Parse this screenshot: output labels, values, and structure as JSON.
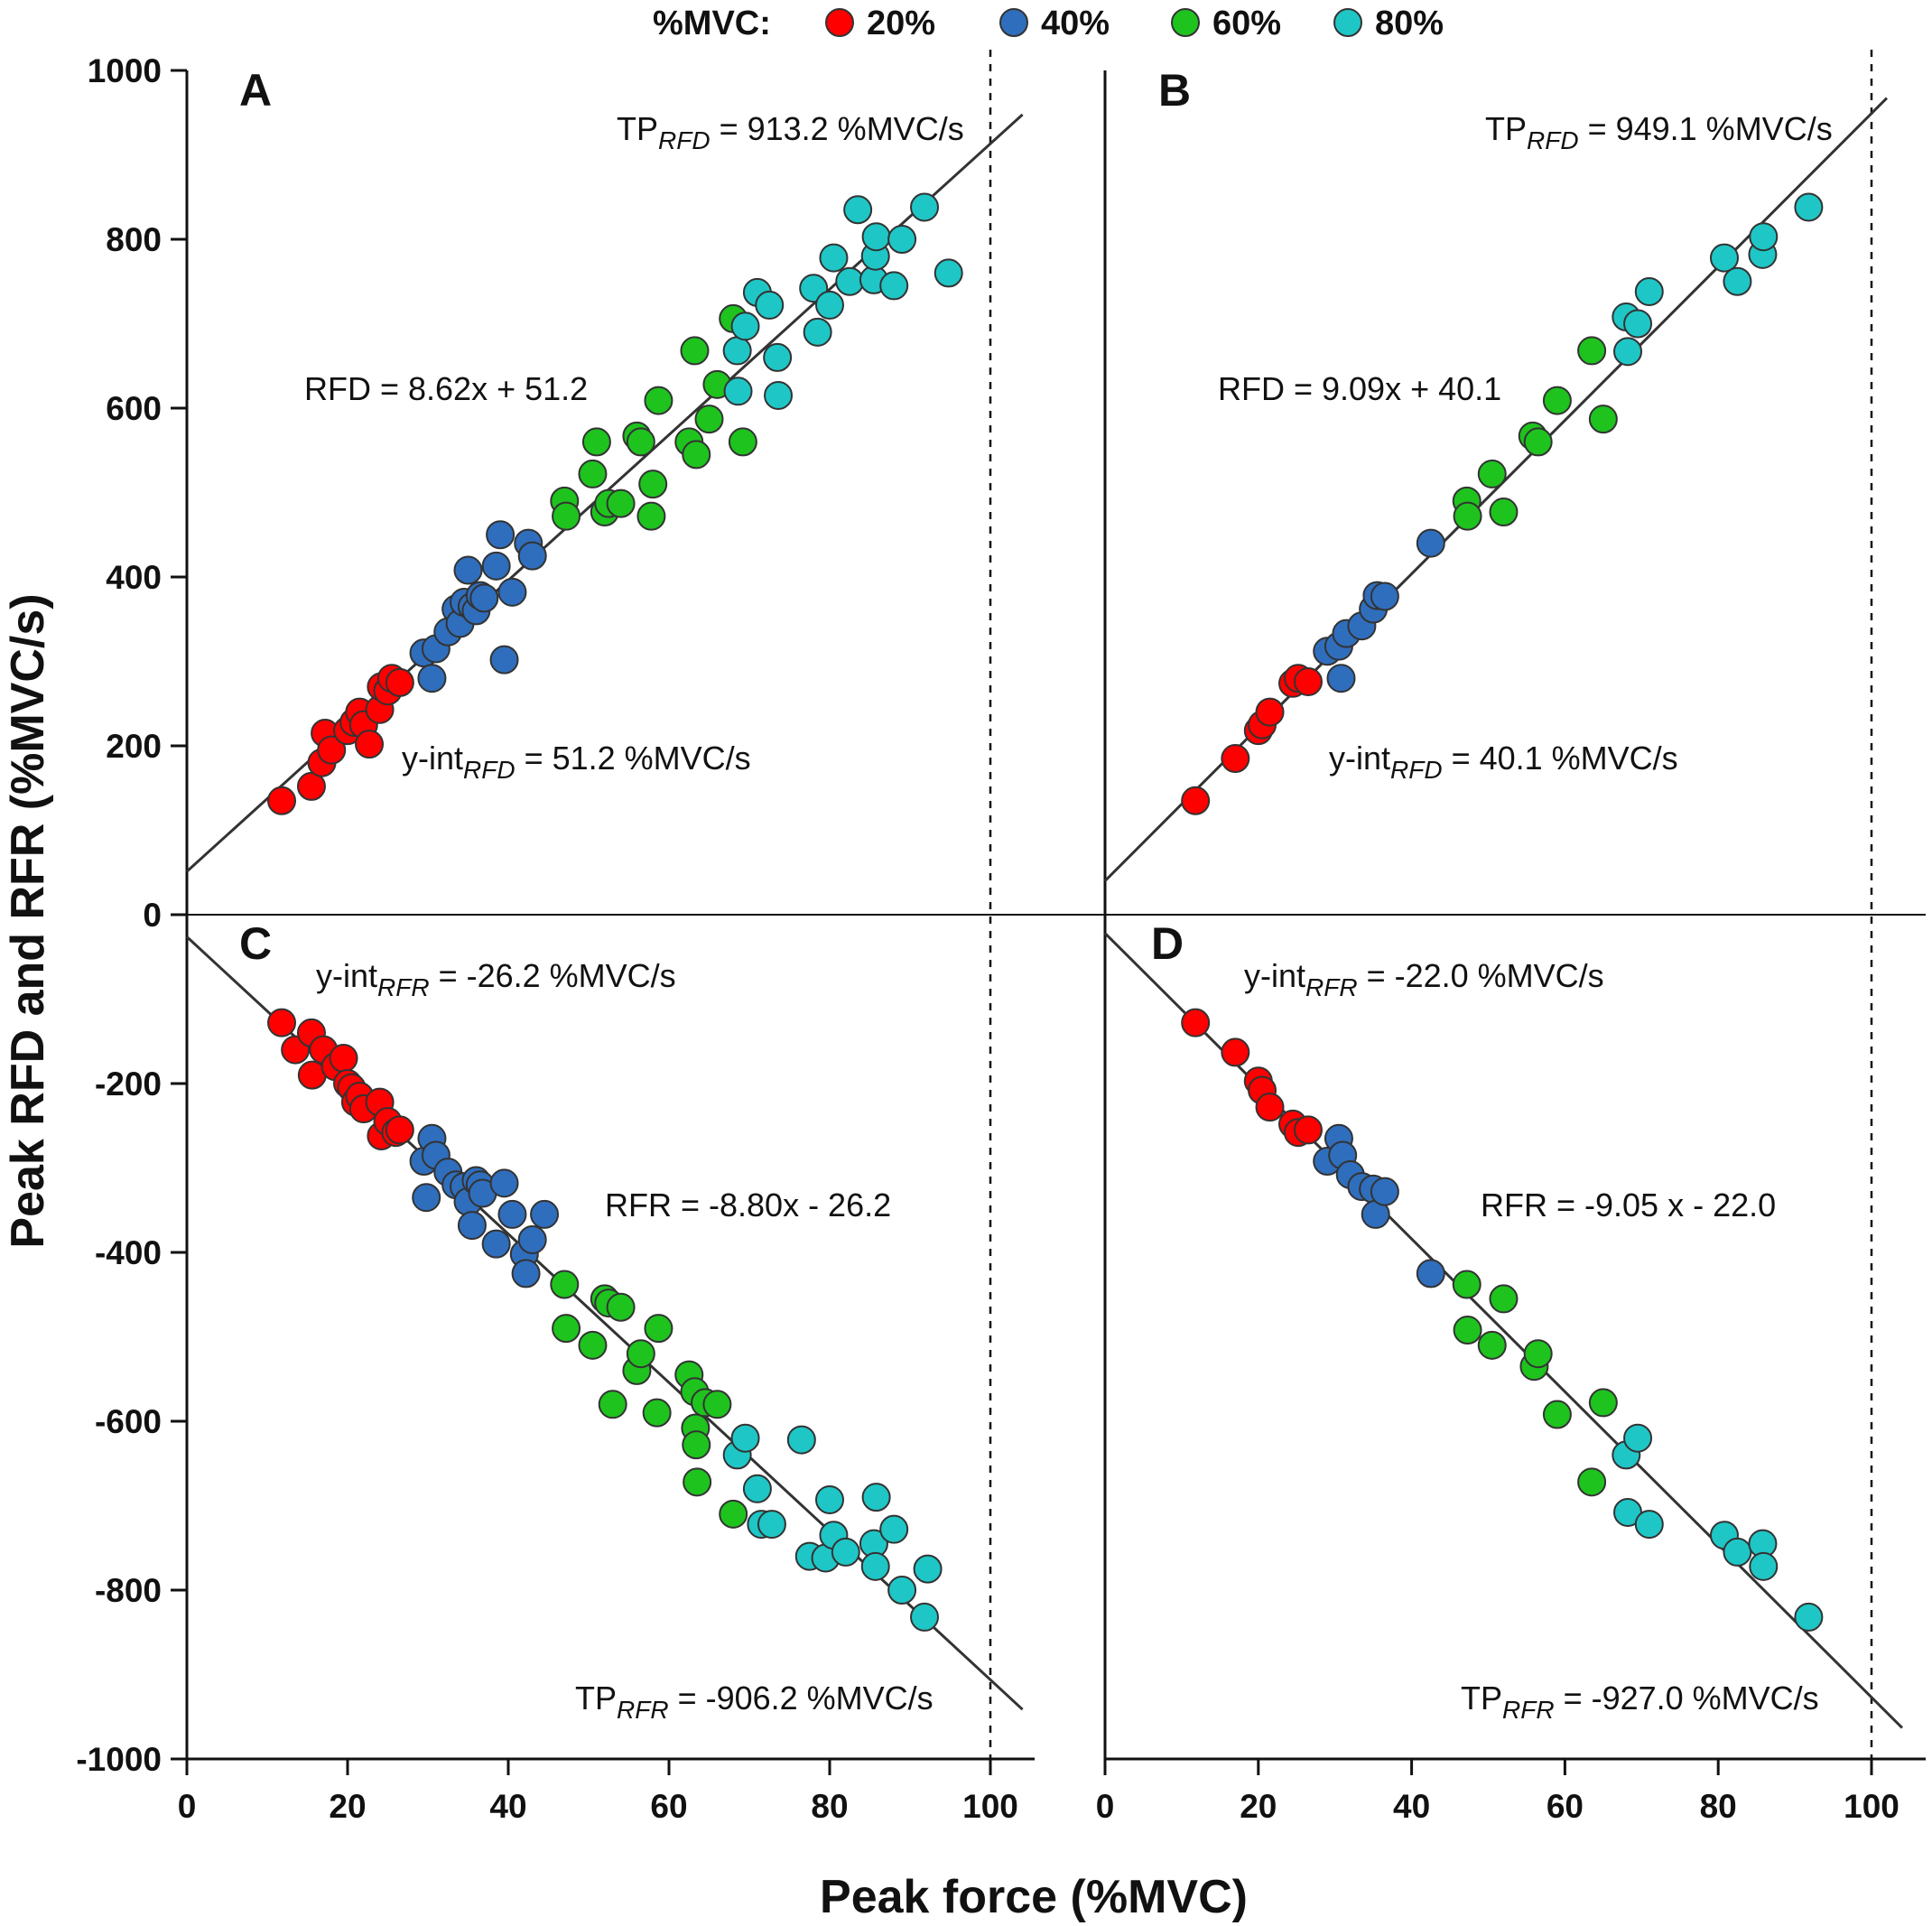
{
  "legend": {
    "title": "%MVC:",
    "items": [
      {
        "label": "20%",
        "color": "#ff0000"
      },
      {
        "label": "40%",
        "color": "#2f6ebd"
      },
      {
        "label": "60%",
        "color": "#1ec31e"
      },
      {
        "label": "80%",
        "color": "#1fc6c6"
      }
    ]
  },
  "chart_data": {
    "type": "scatter",
    "xlabel": "Peak force (%MVC)",
    "ylabel": "Peak RFD and RFR (%MVC/s)",
    "xlim": [
      0,
      105
    ],
    "ylim": [
      -1000,
      1000
    ],
    "x_ticks": [
      "0",
      "20",
      "40",
      "60",
      "80",
      "100"
    ],
    "y_ticks": [
      "-1000",
      "-800",
      "-600",
      "-400",
      "-200",
      "0",
      "200",
      "400",
      "600",
      "800",
      "1000"
    ],
    "reference_x": 100,
    "panels": [
      {
        "letter": "A",
        "quadrant": "top-left",
        "fit": {
          "slope": 8.62,
          "intercept": 51.2
        },
        "equation": "RFD = 8.62x + 51.2",
        "tp_prefix": "TP",
        "tp_sub": "RFD",
        "tp_value": " = 913.2 %MVC/s",
        "yint_prefix": "y-int",
        "yint_sub": "RFD",
        "yint_value": " = 51.2 %MVC/s",
        "points": {
          "20%": [
            [
              11.8,
              135
            ],
            [
              15.5,
              152
            ],
            [
              16.8,
              180
            ],
            [
              17.2,
              215
            ],
            [
              18.0,
              195
            ],
            [
              20.0,
              218
            ],
            [
              20.8,
              228
            ],
            [
              21.5,
              240
            ],
            [
              22.0,
              225
            ],
            [
              22.7,
              202
            ],
            [
              24.0,
              243
            ],
            [
              24.2,
              270
            ],
            [
              25.0,
              265
            ],
            [
              25.5,
              280
            ],
            [
              26.5,
              275
            ]
          ],
          "40%": [
            [
              29.5,
              310
            ],
            [
              30.5,
              280
            ],
            [
              31.0,
              315
            ],
            [
              32.5,
              335
            ],
            [
              33.5,
              362
            ],
            [
              34.0,
              345
            ],
            [
              34.5,
              370
            ],
            [
              35.0,
              408
            ],
            [
              35.5,
              365
            ],
            [
              36.0,
              360
            ],
            [
              36.5,
              378
            ],
            [
              37.0,
              375
            ],
            [
              38.5,
              413
            ],
            [
              39.0,
              450
            ],
            [
              39.5,
              302
            ],
            [
              40.5,
              382
            ],
            [
              42.5,
              440
            ],
            [
              43.0,
              425
            ]
          ],
          "60%": [
            [
              47.0,
              490
            ],
            [
              47.2,
              472
            ],
            [
              50.5,
              522
            ],
            [
              51.0,
              560
            ],
            [
              52.0,
              477
            ],
            [
              52.5,
              487
            ],
            [
              54.0,
              487
            ],
            [
              56.0,
              567
            ],
            [
              56.5,
              560
            ],
            [
              57.8,
              472
            ],
            [
              58.0,
              510
            ],
            [
              58.7,
              609
            ],
            [
              62.5,
              560
            ],
            [
              63.2,
              668
            ],
            [
              63.4,
              545
            ],
            [
              65.0,
              587
            ],
            [
              66.0,
              628
            ],
            [
              68.0,
              706
            ],
            [
              69.2,
              560
            ]
          ],
          "80%": [
            [
              68.5,
              668
            ],
            [
              68.6,
              620
            ],
            [
              69.5,
              697
            ],
            [
              71.0,
              737
            ],
            [
              72.5,
              722
            ],
            [
              73.5,
              660
            ],
            [
              73.6,
              615
            ],
            [
              78.0,
              742
            ],
            [
              78.5,
              690
            ],
            [
              80.0,
              722
            ],
            [
              80.5,
              778
            ],
            [
              82.5,
              750
            ],
            [
              83.5,
              835
            ],
            [
              85.5,
              752
            ],
            [
              85.7,
              780
            ],
            [
              85.8,
              803
            ],
            [
              88.0,
              745
            ],
            [
              89.0,
              800
            ],
            [
              91.8,
              838
            ],
            [
              94.8,
              760
            ]
          ]
        }
      },
      {
        "letter": "B",
        "quadrant": "top-right",
        "fit": {
          "slope": 9.09,
          "intercept": 40.1
        },
        "equation": "RFD = 9.09x + 40.1",
        "tp_prefix": "TP",
        "tp_sub": "RFD",
        "tp_value": " = 949.1 %MVC/s",
        "yint_prefix": "y-int",
        "yint_sub": "RFD",
        "yint_value": " = 40.1 %MVC/s",
        "points": {
          "20%": [
            [
              11.8,
              135
            ],
            [
              17.0,
              185
            ],
            [
              20.0,
              218
            ],
            [
              20.5,
              225
            ],
            [
              21.5,
              240
            ],
            [
              24.5,
              274
            ],
            [
              25.2,
              280
            ],
            [
              26.5,
              276
            ]
          ],
          "40%": [
            [
              29.0,
              312
            ],
            [
              30.5,
              318
            ],
            [
              30.8,
              280
            ],
            [
              31.5,
              333
            ],
            [
              33.5,
              342
            ],
            [
              35.0,
              362
            ],
            [
              35.5,
              378
            ],
            [
              36.5,
              377
            ],
            [
              42.5,
              440
            ]
          ],
          "60%": [
            [
              47.2,
              490
            ],
            [
              47.3,
              472
            ],
            [
              50.5,
              522
            ],
            [
              52.0,
              477
            ],
            [
              55.8,
              567
            ],
            [
              56.5,
              560
            ],
            [
              59.0,
              609
            ],
            [
              63.5,
              668
            ],
            [
              65.0,
              587
            ]
          ],
          "80%": [
            [
              68.0,
              708
            ],
            [
              68.2,
              667
            ],
            [
              69.5,
              700
            ],
            [
              71.0,
              738
            ],
            [
              80.8,
              778
            ],
            [
              82.5,
              750
            ],
            [
              85.8,
              782
            ],
            [
              85.9,
              803
            ],
            [
              91.8,
              838
            ]
          ]
        }
      },
      {
        "letter": "C",
        "quadrant": "bottom-left",
        "fit": {
          "slope": -8.8,
          "intercept": -26.2
        },
        "equation": "RFR = -8.80x - 26.2",
        "tp_prefix": "TP",
        "tp_sub": "RFR",
        "tp_value": " = -906.2 %MVC/s",
        "yint_prefix": "y-int",
        "yint_sub": "RFR",
        "yint_value": " = -26.2 %MVC/s",
        "points": {
          "20%": [
            [
              11.8,
              -128
            ],
            [
              13.5,
              -160
            ],
            [
              15.5,
              -140
            ],
            [
              15.6,
              -190
            ],
            [
              17.0,
              -160
            ],
            [
              18.5,
              -180
            ],
            [
              19.5,
              -170
            ],
            [
              20.0,
              -200
            ],
            [
              20.5,
              -205
            ],
            [
              21.0,
              -222
            ],
            [
              21.5,
              -215
            ],
            [
              22.0,
              -230
            ],
            [
              24.0,
              -222
            ],
            [
              24.2,
              -262
            ],
            [
              25.0,
              -245
            ],
            [
              26.0,
              -258
            ],
            [
              26.5,
              -255
            ]
          ],
          "40%": [
            [
              29.5,
              -292
            ],
            [
              29.8,
              -335
            ],
            [
              30.5,
              -265
            ],
            [
              31.0,
              -285
            ],
            [
              32.5,
              -305
            ],
            [
              33.5,
              -320
            ],
            [
              34.5,
              -322
            ],
            [
              35.0,
              -340
            ],
            [
              35.5,
              -368
            ],
            [
              36.0,
              -315
            ],
            [
              36.5,
              -320
            ],
            [
              36.8,
              -330
            ],
            [
              38.5,
              -390
            ],
            [
              39.5,
              -318
            ],
            [
              40.5,
              -355
            ],
            [
              42.0,
              -402
            ],
            [
              42.2,
              -425
            ],
            [
              43.0,
              -385
            ],
            [
              44.5,
              -355
            ]
          ],
          "60%": [
            [
              47.0,
              -438
            ],
            [
              47.2,
              -490
            ],
            [
              50.5,
              -510
            ],
            [
              52.0,
              -455
            ],
            [
              52.5,
              -460
            ],
            [
              53.0,
              -580
            ],
            [
              54.0,
              -465
            ],
            [
              56.0,
              -540
            ],
            [
              56.5,
              -520
            ],
            [
              58.5,
              -590
            ],
            [
              58.7,
              -490
            ],
            [
              62.5,
              -545
            ],
            [
              63.2,
              -565
            ],
            [
              63.3,
              -608
            ],
            [
              63.4,
              -628
            ],
            [
              63.5,
              -672
            ],
            [
              64.5,
              -578
            ],
            [
              66.0,
              -580
            ],
            [
              68.0,
              -710
            ]
          ],
          "80%": [
            [
              68.5,
              -640
            ],
            [
              69.5,
              -620
            ],
            [
              71.0,
              -680
            ],
            [
              71.5,
              -722
            ],
            [
              72.8,
              -722
            ],
            [
              76.5,
              -622
            ],
            [
              77.5,
              -760
            ],
            [
              79.5,
              -762
            ],
            [
              80.0,
              -693
            ],
            [
              80.5,
              -735
            ],
            [
              82.0,
              -755
            ],
            [
              85.5,
              -745
            ],
            [
              85.7,
              -772
            ],
            [
              85.8,
              -690
            ],
            [
              88.0,
              -728
            ],
            [
              89.0,
              -800
            ],
            [
              91.8,
              -832
            ],
            [
              92.2,
              -775
            ]
          ]
        }
      },
      {
        "letter": "D",
        "quadrant": "bottom-right",
        "fit": {
          "slope": -9.05,
          "intercept": -22.0
        },
        "equation": "RFR = -9.05 x - 22.0",
        "tp_prefix": "TP",
        "tp_sub": "RFR",
        "tp_value": " = -927.0 %MVC/s",
        "yint_prefix": "y-int",
        "yint_sub": "RFR",
        "yint_value": " = -22.0 %MVC/s",
        "points": {
          "20%": [
            [
              11.8,
              -128
            ],
            [
              17.0,
              -163
            ],
            [
              20.0,
              -197
            ],
            [
              20.5,
              -208
            ],
            [
              21.5,
              -228
            ],
            [
              24.5,
              -248
            ],
            [
              25.2,
              -258
            ],
            [
              26.5,
              -255
            ]
          ],
          "40%": [
            [
              29.0,
              -292
            ],
            [
              30.5,
              -265
            ],
            [
              31.0,
              -285
            ],
            [
              32.0,
              -308
            ],
            [
              33.5,
              -322
            ],
            [
              35.0,
              -325
            ],
            [
              35.3,
              -355
            ],
            [
              36.5,
              -328
            ],
            [
              42.5,
              -425
            ]
          ],
          "60%": [
            [
              47.2,
              -438
            ],
            [
              47.3,
              -492
            ],
            [
              50.5,
              -510
            ],
            [
              52.0,
              -455
            ],
            [
              56.0,
              -535
            ],
            [
              56.5,
              -520
            ],
            [
              59.0,
              -592
            ],
            [
              63.5,
              -672
            ],
            [
              65.0,
              -578
            ]
          ],
          "80%": [
            [
              68.0,
              -640
            ],
            [
              68.2,
              -708
            ],
            [
              69.5,
              -620
            ],
            [
              71.0,
              -722
            ],
            [
              80.8,
              -735
            ],
            [
              82.5,
              -755
            ],
            [
              85.8,
              -745
            ],
            [
              85.9,
              -772
            ],
            [
              91.8,
              -832
            ]
          ]
        }
      }
    ]
  }
}
